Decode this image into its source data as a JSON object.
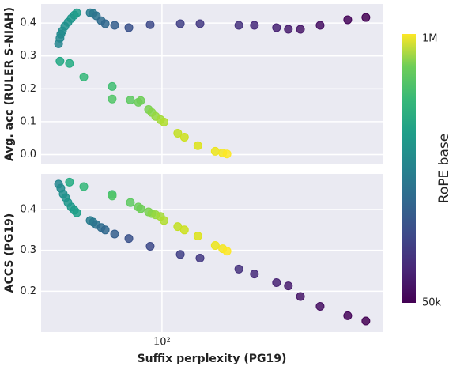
{
  "chart_data": [
    {
      "type": "scatter",
      "ylabel": "Avg. acc (RULER S-NIAH)",
      "x": [
        35.7,
        36.2,
        36.5,
        37.1,
        38.0,
        39.2,
        40.5,
        41.8,
        42.8,
        48.9,
        50.4,
        52.0,
        54.6,
        56.8,
        62.4,
        71.9,
        88.9,
        120,
        146,
        215,
        251,
        313,
        352,
        397,
        483,
        636,
        762,
        36.2,
        39.8,
        45.9,
        60.9,
        60.9,
        73.0,
        79.0,
        80.9,
        87.5,
        90.3,
        93.9,
        98.5,
        102,
        117,
        125,
        143,
        170,
        183,
        191
      ],
      "values": [
        0.337,
        0.354,
        0.366,
        0.376,
        0.39,
        0.402,
        0.414,
        0.424,
        0.431,
        0.431,
        0.429,
        0.422,
        0.407,
        0.398,
        0.393,
        0.386,
        0.395,
        0.398,
        0.398,
        0.393,
        0.393,
        0.386,
        0.381,
        0.381,
        0.393,
        0.41,
        0.417,
        0.284,
        0.277,
        0.236,
        0.207,
        0.169,
        0.166,
        0.159,
        0.164,
        0.137,
        0.128,
        0.116,
        0.106,
        0.099,
        0.065,
        0.053,
        0.027,
        0.01,
        0.005,
        0.002
      ],
      "colors": [
        "#25858e",
        "#24878e",
        "#238a8d",
        "#228c8d",
        "#21908d",
        "#20928c",
        "#1f968b",
        "#1f998a",
        "#1e9c89",
        "#287c8e",
        "#2a788e",
        "#2c738e",
        "#2f6c8e",
        "#31688e",
        "#355f8d",
        "#3b528b",
        "#3e4a89",
        "#424186",
        "#443983",
        "#46327e",
        "#472a7a",
        "#482374",
        "#481c6e",
        "#481769",
        "#471063",
        "#450559",
        "#440154",
        "#22a884",
        "#25ac82",
        "#35b779",
        "#40bd72",
        "#52c569",
        "#5ec962",
        "#6ccd5a",
        "#6ece58",
        "#7ad151",
        "#86d549",
        "#95d840",
        "#a2da37",
        "#b0dd2f",
        "#c2df23",
        "#cde11d",
        "#dde318",
        "#ece51b",
        "#f4e61e",
        "#fde725"
      ],
      "ylim": [
        -0.03,
        0.458
      ],
      "yticks": [
        {
          "value": 0,
          "label": "0.0"
        },
        0.1,
        0.2,
        0.3,
        0.4
      ]
    },
    {
      "type": "scatter",
      "ylabel": "ACCS (PG19)",
      "xlabel": "Suffix perplexity (PG19)",
      "x": [
        35.7,
        36.5,
        37.4,
        38.3,
        39.2,
        40.5,
        41.8,
        42.8,
        39.8,
        45.9,
        60.9,
        60.9,
        73.0,
        79.0,
        80.9,
        87.5,
        90.3,
        93.9,
        98.5,
        102,
        117,
        125,
        143,
        170,
        183,
        191,
        48.9,
        50.4,
        52.0,
        54.6,
        56.8,
        62.4,
        71.9,
        88.9,
        120,
        146,
        215,
        251,
        313,
        352,
        397,
        483,
        636,
        762
      ],
      "values": [
        0.462,
        0.452,
        0.438,
        0.429,
        0.417,
        0.406,
        0.398,
        0.392,
        0.467,
        0.456,
        0.437,
        0.433,
        0.417,
        0.406,
        0.402,
        0.394,
        0.39,
        0.387,
        0.383,
        0.373,
        0.358,
        0.35,
        0.335,
        0.312,
        0.304,
        0.298,
        0.373,
        0.369,
        0.363,
        0.356,
        0.35,
        0.34,
        0.329,
        0.31,
        0.29,
        0.281,
        0.254,
        0.242,
        0.221,
        0.213,
        0.187,
        0.163,
        0.14,
        0.127
      ],
      "colors": [
        "#25858e",
        "#238a8d",
        "#218f8d",
        "#20928c",
        "#1f968b",
        "#1f998a",
        "#1e9c89",
        "#1fa088",
        "#25ac82",
        "#35b779",
        "#40bd72",
        "#52c569",
        "#5ec962",
        "#6ccd5a",
        "#6ece58",
        "#7ad151",
        "#86d549",
        "#95d840",
        "#a2da37",
        "#b0dd2f",
        "#c2df23",
        "#cde11d",
        "#dde318",
        "#ece51b",
        "#f4e61e",
        "#fde725",
        "#287c8e",
        "#2a788e",
        "#2c738e",
        "#2f6c8e",
        "#31688e",
        "#355f8d",
        "#3b528b",
        "#3e4a89",
        "#424186",
        "#443983",
        "#46327e",
        "#472a7a",
        "#482374",
        "#481c6e",
        "#481769",
        "#471063",
        "#450559",
        "#440154"
      ],
      "ylim": [
        0.1,
        0.487
      ],
      "yticks": [
        0.2,
        0.3,
        0.4
      ],
      "xlim": [
        30,
        900
      ],
      "log_x": true,
      "xticks": [
        {
          "value": 100,
          "label": "10²"
        }
      ]
    }
  ],
  "colorbar": {
    "label": "RoPE base",
    "top_label": "1M",
    "bottom_label": "50k"
  }
}
